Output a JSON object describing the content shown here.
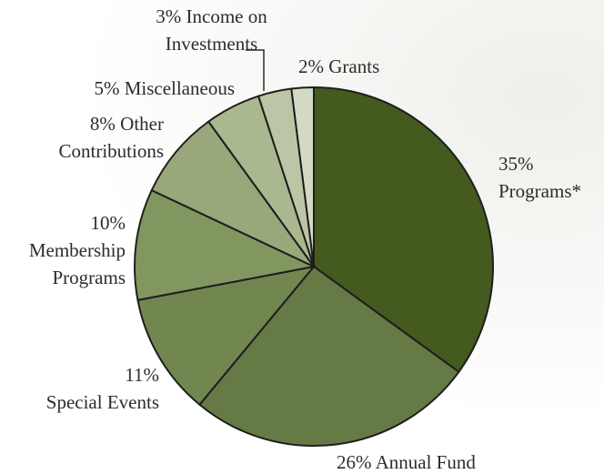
{
  "chart_data": {
    "type": "pie",
    "categories": [
      "Programs*",
      "Annual Fund",
      "Special Events",
      "Membership Programs",
      "Other Contributions",
      "Miscellaneous",
      "Income on Investments",
      "Grants"
    ],
    "values": [
      35,
      26,
      11,
      10,
      8,
      5,
      3,
      2
    ],
    "value_labels": [
      "35%",
      "26%",
      "11%",
      "10%",
      "8%",
      "5%",
      "3%",
      "2%"
    ],
    "colors": [
      "#445a1f",
      "#667a45",
      "#71874f",
      "#82965f",
      "#98a87a",
      "#aab890",
      "#bcc6a6",
      "#d2dac3"
    ]
  }
}
